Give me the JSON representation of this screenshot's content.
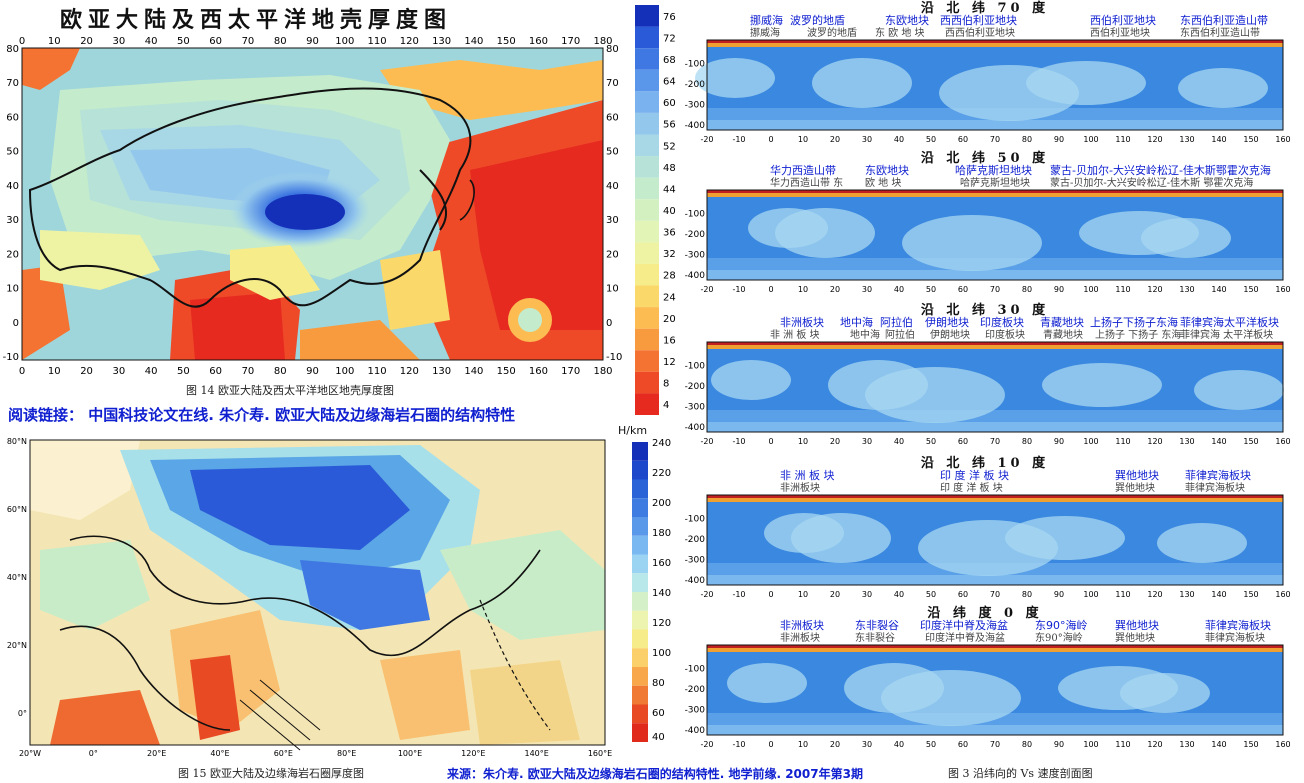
{
  "fig14": {
    "title": "欧亚大陆及西太平洋地壳厚度图",
    "caption": "图 14   欧亚大陆及西太平洋地区地壳厚度图",
    "x_ticks": [
      "0",
      "10",
      "20",
      "30",
      "40",
      "50",
      "60",
      "70",
      "80",
      "90",
      "100",
      "110",
      "120",
      "130",
      "140",
      "150",
      "160",
      "170",
      "180"
    ],
    "y_ticks": [
      "80",
      "70",
      "60",
      "50",
      "40",
      "30",
      "20",
      "10",
      "0",
      "-10"
    ],
    "colorbar": [
      "76",
      "72",
      "68",
      "64",
      "60",
      "56",
      "52",
      "48",
      "44",
      "40",
      "36",
      "32",
      "28",
      "24",
      "20",
      "16",
      "12",
      "8",
      "4"
    ],
    "colors": [
      "#1530b8",
      "#2a5ad8",
      "#3f78e2",
      "#5a96ea",
      "#79b2ee",
      "#93c7ec",
      "#a8d8e6",
      "#b6e2d8",
      "#c4ebcc",
      "#d2f0c0",
      "#e2f4b6",
      "#eef3a4",
      "#f7ec8a",
      "#fbd86a",
      "#fcbc52",
      "#f89a3e",
      "#f47332",
      "#ee4a28",
      "#e62a20"
    ]
  },
  "reading_link": "阅读链接：  中国科技论文在线. 朱介寿. 欧亚大陆及边缘海岩石圈的结构特性",
  "fig15": {
    "caption": "图 15   欧亚大陆及边缘海岩石圈厚度图",
    "unit": "H/km",
    "x_ticks": [
      "20°W",
      "0°",
      "20°E",
      "40°E",
      "60°E",
      "80°E",
      "100°E",
      "120°E",
      "140°E",
      "160°E"
    ],
    "y_ticks": [
      "80°N",
      "60°N",
      "40°N",
      "20°N",
      "0°"
    ],
    "colorbar": [
      "240",
      "220",
      "200",
      "180",
      "160",
      "140",
      "120",
      "100",
      "80",
      "60",
      "40"
    ]
  },
  "source": "来源：朱介寿. 欧亚大陆及边缘海岩石圈的结构特性. 地学前缘. 2007年第3期",
  "fig3": {
    "caption": "图 3   沿纬向的 Vs 速度剖面图",
    "x_ticks": [
      "-20",
      "-10",
      "0",
      "10",
      "20",
      "30",
      "40",
      "50",
      "60",
      "70",
      "80",
      "90",
      "100",
      "110",
      "120",
      "130",
      "140",
      "150",
      "160"
    ],
    "y_ticks": [
      "-100",
      "-200",
      "-300",
      "-400"
    ],
    "profiles": [
      {
        "title": "沿 北 纬 70 度",
        "blue_labels": [
          "挪威海",
          "波罗的地盾",
          "东欧地块",
          "西西伯利亚地块",
          "西伯利亚地块",
          "东西伯利亚造山带"
        ],
        "grey_labels": [
          "挪威海",
          "波罗的地盾",
          "东  欧  地  块",
          "西西伯利亚地块",
          "西伯利亚地块",
          "东西伯利亚造山带"
        ]
      },
      {
        "title": "沿 北 纬 50 度",
        "blue_labels": [
          "华力西造山带",
          "东欧地块",
          "哈萨克斯坦地块",
          "蒙古-贝加尔-大兴安岭松辽-佳木斯鄂霍次克海"
        ],
        "grey_labels": [
          "华力西造山带  东",
          "欧  地  块",
          "哈萨克斯坦地块",
          "蒙古-贝加尔-大兴安岭松辽-佳木斯 鄂霍次克海"
        ]
      },
      {
        "title": "沿 北 纬 30 度",
        "blue_labels": [
          "非洲板块",
          "地中海",
          "阿拉伯",
          "伊朗地块",
          "印度板块",
          "青藏地块",
          "上扬子下扬子东海",
          "菲律宾海太平洋板块"
        ],
        "grey_labels": [
          "非    洲    板    块",
          "地中海",
          "阿拉伯",
          "伊朗地块",
          "印度板块",
          "青藏地块",
          "上扬子 下扬子 东海",
          "菲律宾海 太平洋板块"
        ]
      },
      {
        "title": "沿 北 纬 10 度",
        "blue_labels": [
          "非 洲 板 块",
          "印 度 洋 板 块",
          "巽他地块",
          "菲律宾海板块"
        ],
        "grey_labels": [
          "非洲板块",
          "印  度  洋  板  块",
          "巽他地块",
          "菲律宾海板块"
        ]
      },
      {
        "title": "沿 纬 度  0  度",
        "blue_labels": [
          "非洲板块",
          "东非裂谷",
          "印度洋中脊及海盆",
          "东90°海岭",
          "巽他地块",
          "菲律宾海板块"
        ],
        "grey_labels": [
          "非洲板块",
          "东非裂谷",
          "印度洋中脊及海盆",
          "东90°海岭",
          "巽他地块",
          "菲律宾海板块"
        ]
      }
    ]
  }
}
